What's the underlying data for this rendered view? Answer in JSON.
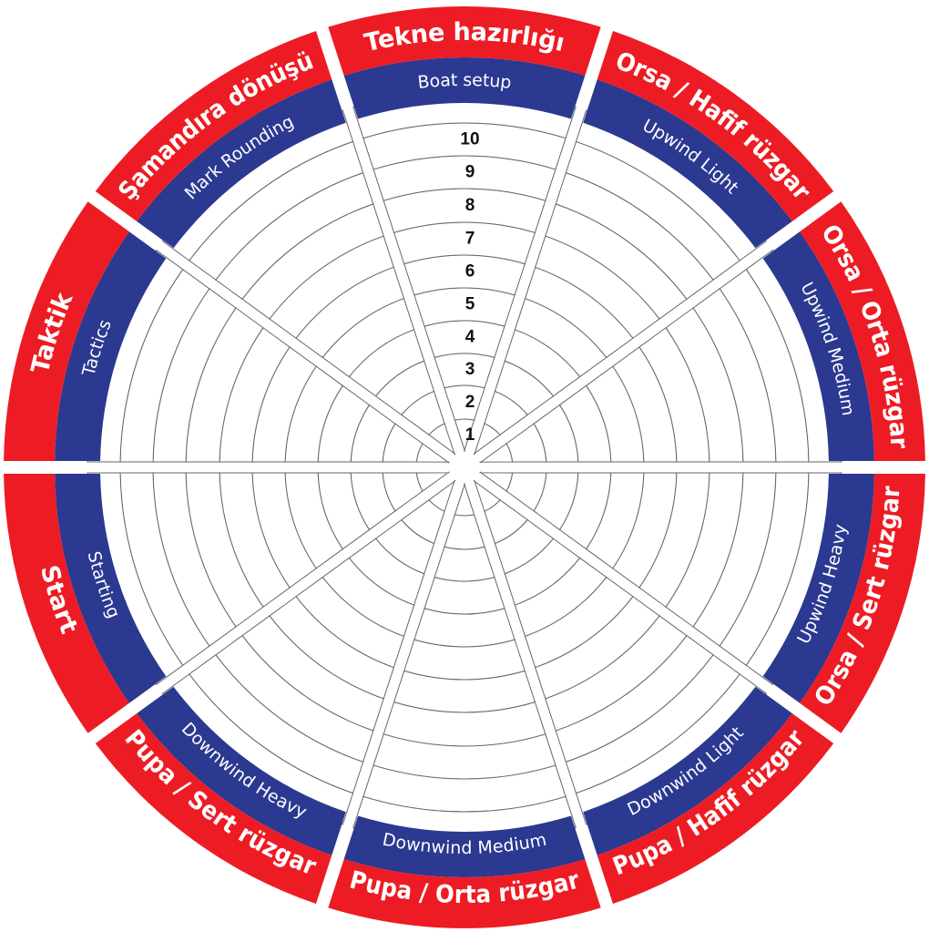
{
  "colors": {
    "outer_band": "#ed1c24",
    "inner_band": "#2b3990",
    "cell_stroke": "#666666",
    "background": "#ffffff",
    "label_text": "#ffffff",
    "level_text": "#111111"
  },
  "levels": [
    "1",
    "2",
    "3",
    "4",
    "5",
    "6",
    "7",
    "8",
    "9",
    "10"
  ],
  "segments": [
    {
      "outer": "Tekne hazırlığı",
      "inner": "Boat setup"
    },
    {
      "outer": "Orsa / Hafif rüzgar",
      "inner": "Upwind Light"
    },
    {
      "outer": "Orsa / Orta rüzgar",
      "inner": "Upwind Medium"
    },
    {
      "outer": "Orsa / Sert rüzgar",
      "inner": "Upwind Heavy"
    },
    {
      "outer": "Pupa / Hafif rüzgar",
      "inner": "Downwind Light"
    },
    {
      "outer": "Pupa / Orta rüzgar",
      "inner": "Downwind Medium"
    },
    {
      "outer": "Pupa / Sert rüzgar",
      "inner": "Downwind Heavy"
    },
    {
      "outer": "Start",
      "inner": "Starting"
    },
    {
      "outer": "Taktik",
      "inner": "Tactics"
    },
    {
      "outer": "Şamandıra dönüşü",
      "inner": "Mark Rounding"
    }
  ]
}
